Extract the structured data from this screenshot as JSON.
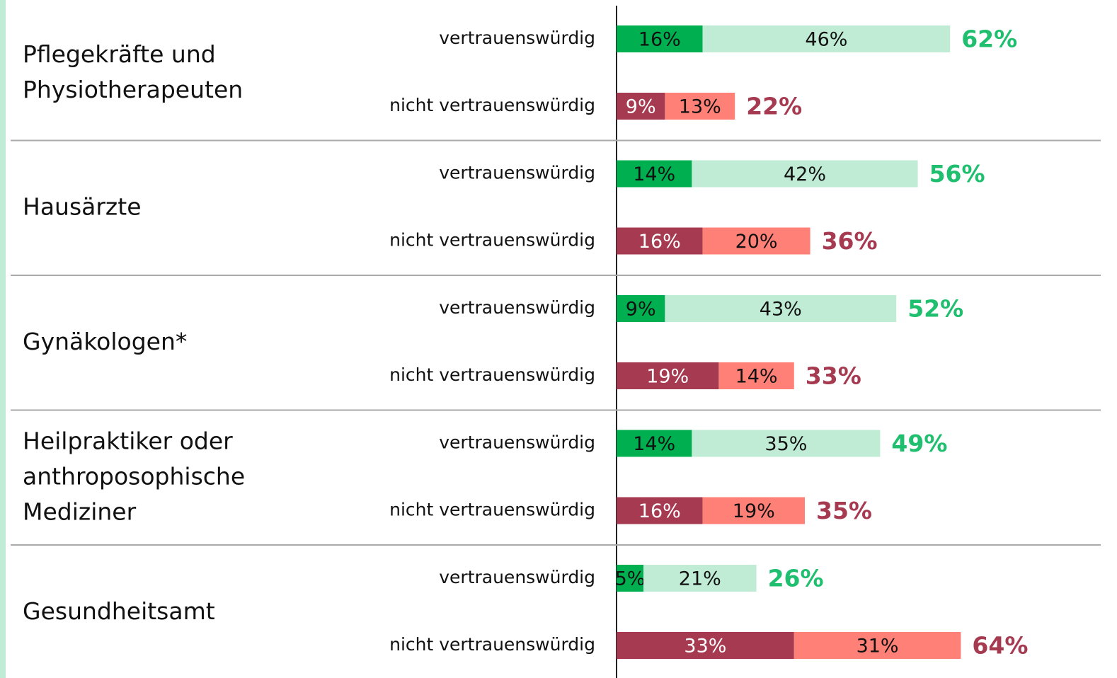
{
  "chart_data": {
    "type": "bar",
    "orientation": "horizontal",
    "stacked": true,
    "rows": [
      {
        "label": "vertrauenswürdig",
        "colors": [
          "#00b050",
          "#c0ecd6"
        ],
        "text_colors": [
          "#111111",
          "#111111"
        ],
        "total_color": "#1fbf6f"
      },
      {
        "label": "nicht vertrauenswürdig",
        "colors": [
          "#a63a50",
          "#ff8077"
        ],
        "text_colors": [
          "#ffffff",
          "#111111"
        ],
        "total_color": "#a63a50"
      }
    ],
    "groups": [
      {
        "label": [
          "Pflegekräfte und",
          "Physiotherapeuten"
        ],
        "values": [
          [
            16,
            46
          ],
          [
            9,
            13
          ]
        ],
        "value_labels": [
          [
            "16%",
            "46%"
          ],
          [
            "9%",
            "13%"
          ]
        ],
        "totals": [
          62,
          22
        ],
        "total_labels": [
          "62%",
          "22%"
        ]
      },
      {
        "label": [
          "Hausärzte"
        ],
        "values": [
          [
            14,
            42
          ],
          [
            16,
            20
          ]
        ],
        "value_labels": [
          [
            "14%",
            "42%"
          ],
          [
            "16%",
            "20%"
          ]
        ],
        "totals": [
          56,
          36
        ],
        "total_labels": [
          "56%",
          "36%"
        ]
      },
      {
        "label": [
          "Gynäkologen*"
        ],
        "values": [
          [
            9,
            43
          ],
          [
            19,
            14
          ]
        ],
        "value_labels": [
          [
            "9%",
            "43%"
          ],
          [
            "19%",
            "14%"
          ]
        ],
        "totals": [
          52,
          33
        ],
        "total_labels": [
          "52%",
          "33%"
        ]
      },
      {
        "label": [
          "Heilpraktiker oder",
          "anthroposophische",
          "Mediziner"
        ],
        "values": [
          [
            14,
            35
          ],
          [
            16,
            19
          ]
        ],
        "value_labels": [
          [
            "14%",
            "35%"
          ],
          [
            "16%",
            "19%"
          ]
        ],
        "totals": [
          49,
          35
        ],
        "total_labels": [
          "49%",
          "35%"
        ]
      },
      {
        "label": [
          "Gesundheitsamt"
        ],
        "values": [
          [
            5,
            21
          ],
          [
            33,
            31
          ]
        ],
        "value_labels": [
          [
            "5%",
            "21%"
          ],
          [
            "33%",
            "31%"
          ]
        ],
        "totals": [
          26,
          64
        ],
        "total_labels": [
          "26%",
          "64%"
        ]
      }
    ]
  }
}
